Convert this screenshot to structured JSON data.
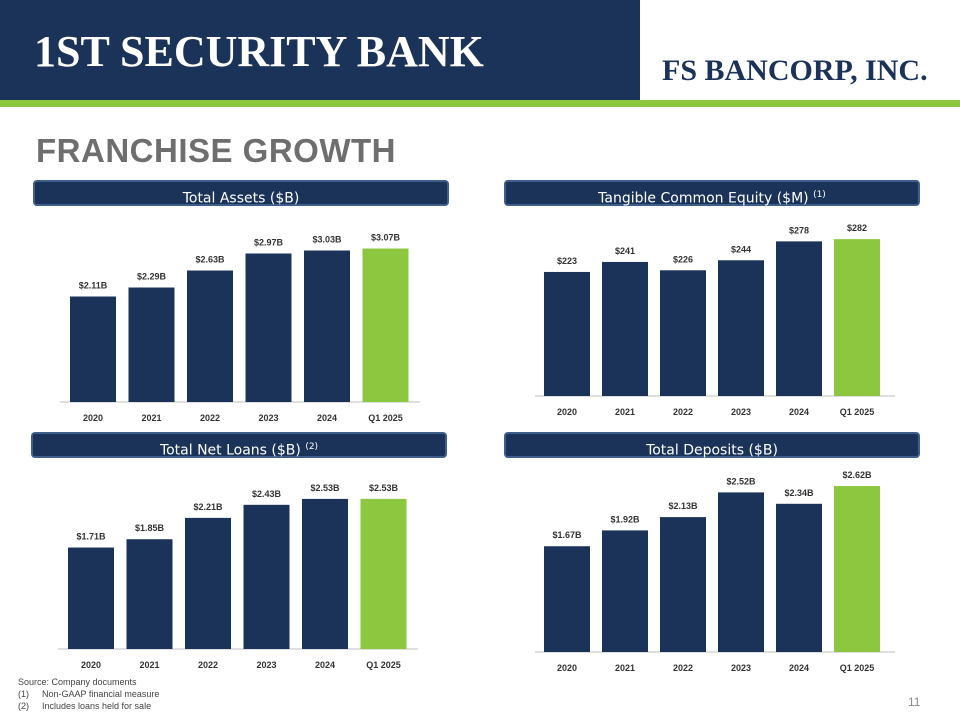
{
  "header": {
    "bank_name": "1ST SECURITY BANK",
    "company_name": "FS BANCORP, INC."
  },
  "page_title": "FRANCHISE GROWTH",
  "colors": {
    "navy": "#1b3358",
    "green": "#8dc63f",
    "axis": "#bfbfbf"
  },
  "panels": [
    {
      "title": "Total Assets ($B)",
      "superscript": ""
    },
    {
      "title": "Tangible Common Equity ($M) ",
      "superscript": "(1)"
    },
    {
      "title": "Total Net Loans ($B) ",
      "superscript": "(2)"
    },
    {
      "title": "Total Deposits ($B)",
      "superscript": ""
    }
  ],
  "chart_data": [
    {
      "type": "bar",
      "title": "Total Assets ($B)",
      "categories": [
        "2020",
        "2021",
        "2022",
        "2023",
        "2024",
        "Q1 2025"
      ],
      "values": [
        2.11,
        2.29,
        2.63,
        2.97,
        3.03,
        3.07
      ],
      "labels": [
        "$2.11B",
        "$2.29B",
        "$2.63B",
        "$2.97B",
        "$3.03B",
        "$3.07B"
      ],
      "highlight_index": 5,
      "ylim": [
        0,
        3.5
      ]
    },
    {
      "type": "bar",
      "title": "Tangible Common Equity ($M)",
      "categories": [
        "2020",
        "2021",
        "2022",
        "2023",
        "2024",
        "Q1 2025"
      ],
      "values": [
        223,
        241,
        226,
        244,
        278,
        282
      ],
      "labels": [
        "$223",
        "$241",
        "$226",
        "$244",
        "$278",
        "$282"
      ],
      "highlight_index": 5,
      "ylim": [
        0,
        320
      ]
    },
    {
      "type": "bar",
      "title": "Total Net Loans ($B)",
      "categories": [
        "2020",
        "2021",
        "2022",
        "2023",
        "2024",
        "Q1 2025"
      ],
      "values": [
        1.71,
        1.85,
        2.21,
        2.43,
        2.53,
        2.53
      ],
      "labels": [
        "$1.71B",
        "$1.85B",
        "$2.21B",
        "$2.43B",
        "$2.53B",
        "$2.53B"
      ],
      "highlight_index": 5,
      "ylim": [
        0,
        3.0
      ]
    },
    {
      "type": "bar",
      "title": "Total Deposits ($B)",
      "categories": [
        "2020",
        "2021",
        "2022",
        "2023",
        "2024",
        "Q1 2025"
      ],
      "values": [
        1.67,
        1.92,
        2.13,
        2.52,
        2.34,
        2.62
      ],
      "labels": [
        "$1.67B",
        "$1.92B",
        "$2.13B",
        "$2.52B",
        "$2.34B",
        "$2.62B"
      ],
      "highlight_index": 5,
      "ylim": [
        0,
        3.0
      ]
    }
  ],
  "footnotes": {
    "source": "Source: Company documents",
    "notes": [
      {
        "num": "(1)",
        "text": "Non-GAAP financial measure"
      },
      {
        "num": "(2)",
        "text": "Includes loans held for sale"
      }
    ]
  },
  "page_number": "11"
}
